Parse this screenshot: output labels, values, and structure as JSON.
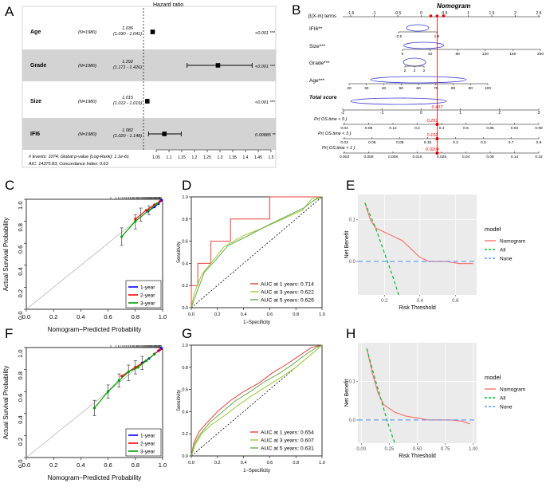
{
  "panel_letters": [
    "A",
    "B",
    "C",
    "D",
    "E",
    "F",
    "G",
    "H"
  ],
  "chart_data": [
    {
      "panel": "A",
      "type": "forest",
      "axis_label": "Hazard ratio",
      "ticks": [
        "1.05",
        "1.1",
        "1.15",
        "1.2",
        "1.25",
        "1.3",
        "1.35",
        "1.4",
        "1.45",
        "1.5"
      ],
      "rows": [
        {
          "name": "Age",
          "n": "(N=1980)",
          "hr": "1.036",
          "ci": "(1.030 - 1.041)",
          "p": "<0.001 ***",
          "hr_val": 1.036,
          "lo": 1.03,
          "hi": 1.041,
          "shaded": false
        },
        {
          "name": "Grade",
          "n": "(N=1980)",
          "hr": "1.292",
          "ci": "(1.171 - 1.426)",
          "p": "<0.001 ***",
          "hr_val": 1.292,
          "lo": 1.171,
          "hi": 1.426,
          "shaded": true
        },
        {
          "name": "Size",
          "n": "(N=1980)",
          "hr": "1.015",
          "ci": "(1.012 - 1.019)",
          "p": "<0.001 ***",
          "hr_val": 1.015,
          "lo": 1.012,
          "hi": 1.019,
          "shaded": false
        },
        {
          "name": "IFI6",
          "n": "(N=1980)",
          "hr": "1.082",
          "ci": "(1.020 - 1.148)",
          "p": "0.00885 **",
          "hr_val": 1.082,
          "lo": 1.02,
          "hi": 1.148,
          "shaded": true
        }
      ],
      "footer_1": "# Events: 1074; Global p-value (Log-Rank): 1.1e-61",
      "footer_2": "AIC: 14375.83; Concordance Index: 0.63"
    },
    {
      "panel": "B",
      "type": "nomogram",
      "title": "Nomogram",
      "header_label": "β(X-m) terms",
      "header_ticks": [
        "-1.5",
        "-1",
        "-0.5",
        "0",
        "0.5",
        "1",
        "1.5",
        "2",
        "2.5"
      ],
      "rows": [
        {
          "label": "IFI6**",
          "ticks": [
            "-2.5",
            "1.5"
          ]
        },
        {
          "label": "Size***",
          "ticks": [
            "0",
            "40",
            "80",
            "120",
            "160",
            "200"
          ]
        },
        {
          "label": "Grade***",
          "ticks": [
            "2",
            "2",
            "2"
          ]
        },
        {
          "label": "Age***",
          "ticks": [
            "20",
            "30",
            "40",
            "50",
            "60",
            "70",
            "80",
            "90",
            "100"
          ]
        }
      ],
      "total_label": "Total score",
      "total_ticks": [
        "-2",
        "-1",
        "0",
        "1",
        "2",
        "3"
      ],
      "total_marker": "0.407",
      "prob_rows": [
        {
          "label": "Pr( OS.time < 5 )",
          "ticks": [
            "0.04",
            "0.08",
            "0.12",
            "0.2",
            "0.4",
            "0.6",
            "0.85",
            "0.94",
            "0.99"
          ],
          "marker": "0.291"
        },
        {
          "label": "Pr( OS.time < 3 )",
          "ticks": [
            "0.03",
            "0.05",
            "0.08",
            "0.15",
            "0.3",
            "0.5",
            "0.7",
            "0.9"
          ],
          "marker": "0.152"
        },
        {
          "label": "Pr( OS.time < 1 )",
          "ticks": [
            "0.003",
            "0.005",
            "0.008",
            "0.015",
            "0.025",
            "0.04",
            "0.08",
            "0.14",
            "0.22"
          ],
          "marker": "0.0204"
        }
      ]
    },
    {
      "panel": "C",
      "type": "calibration",
      "xlabel": "Nomogram−Predicted Probability",
      "ylabel": "Actual Survival Probability",
      "xticks": [
        "0.0",
        "0.2",
        "0.4",
        "0.6",
        "0.8",
        "1.0"
      ],
      "yticks": [
        "0.0",
        "0.2",
        "0.4",
        "0.6",
        "0.8",
        "1.0"
      ],
      "legend": [
        "1-year",
        "2-year",
        "3-year"
      ],
      "series": [
        {
          "name": "1-year",
          "color": "#0000ff",
          "points": [
            [
              0.89,
              0.89
            ],
            [
              0.94,
              0.93
            ],
            [
              0.97,
              0.96
            ],
            [
              0.99,
              0.99
            ]
          ]
        },
        {
          "name": "2-year",
          "color": "#ff0000",
          "points": [
            [
              0.8,
              0.82
            ],
            [
              0.88,
              0.9
            ],
            [
              0.94,
              0.95
            ],
            [
              0.98,
              0.98
            ]
          ]
        },
        {
          "name": "3-year",
          "color": "#00a000",
          "points": [
            [
              0.7,
              0.66
            ],
            [
              0.8,
              0.8
            ],
            [
              0.9,
              0.9
            ],
            [
              0.96,
              0.96
            ]
          ]
        }
      ],
      "errbars": [
        [
          0.7,
          0.66,
          0.58,
          0.74
        ],
        [
          0.8,
          0.8,
          0.73,
          0.86
        ],
        [
          0.84,
          0.86,
          0.8,
          0.92
        ],
        [
          0.9,
          0.9,
          0.86,
          0.94
        ]
      ]
    },
    {
      "panel": "D",
      "type": "roc",
      "xlabel": "1−Specificity",
      "ylabel": "Sensitivity",
      "ticks": [
        "0.0",
        "0.2",
        "0.4",
        "0.6",
        "0.8",
        "1.0"
      ],
      "legend": [
        {
          "label": "AUC at 1 years: 0.714",
          "color": "#e8413c"
        },
        {
          "label": "AUC at 3 years: 0.622",
          "color": "#9acd32"
        },
        {
          "label": "AUC at 5 years: 0.626",
          "color": "#6aa84f"
        }
      ],
      "series": [
        {
          "color": "#e8413c",
          "points": [
            [
              0,
              0
            ],
            [
              0,
              0.2
            ],
            [
              0.05,
              0.2
            ],
            [
              0.05,
              0.4
            ],
            [
              0.15,
              0.4
            ],
            [
              0.15,
              0.6
            ],
            [
              0.3,
              0.6
            ],
            [
              0.3,
              0.8
            ],
            [
              0.6,
              0.8
            ],
            [
              0.6,
              1.0
            ],
            [
              1,
              1
            ]
          ]
        },
        {
          "color": "#9acd32",
          "points": [
            [
              0,
              0
            ],
            [
              0.02,
              0.12
            ],
            [
              0.08,
              0.3
            ],
            [
              0.15,
              0.4
            ],
            [
              0.25,
              0.55
            ],
            [
              0.4,
              0.65
            ],
            [
              0.55,
              0.72
            ],
            [
              0.7,
              0.8
            ],
            [
              0.85,
              0.88
            ],
            [
              0.92,
              0.98
            ],
            [
              1,
              1
            ]
          ]
        },
        {
          "color": "#6aa84f",
          "points": [
            [
              0,
              0
            ],
            [
              0.03,
              0.1
            ],
            [
              0.1,
              0.32
            ],
            [
              0.18,
              0.42
            ],
            [
              0.28,
              0.56
            ],
            [
              0.42,
              0.64
            ],
            [
              0.58,
              0.74
            ],
            [
              0.72,
              0.82
            ],
            [
              0.86,
              0.9
            ],
            [
              0.94,
              0.97
            ],
            [
              1,
              1
            ]
          ]
        }
      ]
    },
    {
      "panel": "E",
      "type": "dca",
      "xlabel": "Risk Threshold",
      "ylabel": "Net Benefit",
      "xticks": [
        "0.2",
        "0.4",
        "0.6"
      ],
      "yticks": [
        "0.0",
        "0.1"
      ],
      "xlim": [
        0.05,
        0.72
      ],
      "ylim": [
        -0.08,
        0.16
      ],
      "legend_title": "model",
      "legend": [
        {
          "label": "Nomogram",
          "color": "#f8766d",
          "style": "solid"
        },
        {
          "label": "All",
          "color": "#00ba38",
          "style": "dashed"
        },
        {
          "label": "None",
          "color": "#619cff",
          "style": "dashed"
        }
      ],
      "series": [
        {
          "color": "#f8766d",
          "dash": "",
          "points": [
            [
              0.09,
              0.14
            ],
            [
              0.12,
              0.1
            ],
            [
              0.15,
              0.08
            ],
            [
              0.2,
              0.07
            ],
            [
              0.25,
              0.06
            ],
            [
              0.3,
              0.05
            ],
            [
              0.35,
              0.03
            ],
            [
              0.4,
              0.01
            ],
            [
              0.45,
              0.0
            ],
            [
              0.55,
              0.0
            ],
            [
              0.62,
              -0.005
            ],
            [
              0.7,
              -0.005
            ]
          ]
        },
        {
          "color": "#00ba38",
          "dash": "4,3",
          "points": [
            [
              0.09,
              0.14
            ],
            [
              0.15,
              0.08
            ],
            [
              0.2,
              0.02
            ],
            [
              0.25,
              -0.04
            ],
            [
              0.28,
              -0.08
            ]
          ]
        },
        {
          "color": "#619cff",
          "dash": "6,4",
          "points": [
            [
              0.05,
              0
            ],
            [
              0.72,
              0
            ]
          ]
        }
      ]
    },
    {
      "panel": "F",
      "type": "calibration",
      "xlabel": "Nomogram−Predicted Probability",
      "ylabel": "Actual Survival Probability",
      "xticks": [
        "0.0",
        "0.2",
        "0.4",
        "0.6",
        "0.8",
        "1.0"
      ],
      "yticks": [
        "0.0",
        "0.2",
        "0.4",
        "0.6",
        "0.8",
        "1.0"
      ],
      "legend": [
        "1-year",
        "2-year",
        "3-year"
      ],
      "series": [
        {
          "name": "1-year",
          "color": "#0000ff",
          "points": [
            [
              0.85,
              0.86
            ],
            [
              0.9,
              0.9
            ],
            [
              0.94,
              0.94
            ],
            [
              0.97,
              0.97
            ],
            [
              0.99,
              0.99
            ]
          ]
        },
        {
          "name": "2-year",
          "color": "#ff0000",
          "points": [
            [
              0.7,
              0.74
            ],
            [
              0.8,
              0.82
            ],
            [
              0.88,
              0.88
            ],
            [
              0.94,
              0.94
            ],
            [
              0.98,
              0.98
            ]
          ]
        },
        {
          "name": "3-year",
          "color": "#00a000",
          "points": [
            [
              0.5,
              0.45
            ],
            [
              0.6,
              0.6
            ],
            [
              0.68,
              0.7
            ],
            [
              0.75,
              0.78
            ],
            [
              0.82,
              0.82
            ],
            [
              0.88,
              0.88
            ],
            [
              0.94,
              0.94
            ]
          ]
        }
      ],
      "errbars": [
        [
          0.5,
          0.45,
          0.38,
          0.52
        ],
        [
          0.6,
          0.6,
          0.54,
          0.66
        ],
        [
          0.68,
          0.7,
          0.64,
          0.76
        ],
        [
          0.75,
          0.78,
          0.7,
          0.84
        ],
        [
          0.8,
          0.82,
          0.76,
          0.88
        ],
        [
          0.85,
          0.86,
          0.8,
          0.92
        ]
      ]
    },
    {
      "panel": "G",
      "type": "roc",
      "xlabel": "1−Specificity",
      "ylabel": "Sensitivity",
      "ticks": [
        "0.0",
        "0.2",
        "0.4",
        "0.6",
        "0.8",
        "1.0"
      ],
      "legend": [
        {
          "label": "AUC at 1 years: 0.654",
          "color": "#e8413c"
        },
        {
          "label": "AUC at 3 years: 0.607",
          "color": "#9acd32"
        },
        {
          "label": "AUC at 5 years: 0.631",
          "color": "#6aa84f"
        }
      ],
      "series": [
        {
          "color": "#e8413c",
          "points": [
            [
              0,
              0
            ],
            [
              0.02,
              0.12
            ],
            [
              0.06,
              0.22
            ],
            [
              0.12,
              0.3
            ],
            [
              0.2,
              0.4
            ],
            [
              0.3,
              0.5
            ],
            [
              0.4,
              0.58
            ],
            [
              0.52,
              0.66
            ],
            [
              0.62,
              0.75
            ],
            [
              0.72,
              0.82
            ],
            [
              0.82,
              0.9
            ],
            [
              0.92,
              0.98
            ],
            [
              1,
              1
            ]
          ]
        },
        {
          "color": "#9acd32",
          "points": [
            [
              0,
              0
            ],
            [
              0.03,
              0.1
            ],
            [
              0.08,
              0.2
            ],
            [
              0.15,
              0.28
            ],
            [
              0.25,
              0.36
            ],
            [
              0.35,
              0.45
            ],
            [
              0.47,
              0.55
            ],
            [
              0.58,
              0.63
            ],
            [
              0.7,
              0.72
            ],
            [
              0.8,
              0.8
            ],
            [
              0.9,
              0.9
            ],
            [
              0.97,
              0.97
            ],
            [
              1,
              1
            ]
          ]
        },
        {
          "color": "#6aa84f",
          "points": [
            [
              0,
              0
            ],
            [
              0.02,
              0.1
            ],
            [
              0.07,
              0.2
            ],
            [
              0.14,
              0.3
            ],
            [
              0.24,
              0.4
            ],
            [
              0.34,
              0.5
            ],
            [
              0.45,
              0.58
            ],
            [
              0.56,
              0.67
            ],
            [
              0.68,
              0.75
            ],
            [
              0.78,
              0.83
            ],
            [
              0.88,
              0.92
            ],
            [
              0.96,
              0.98
            ],
            [
              1,
              1
            ]
          ]
        }
      ]
    },
    {
      "panel": "H",
      "type": "dca",
      "xlabel": "Risk Threshold",
      "ylabel": "Net Benefit",
      "xticks": [
        "0.00",
        "0.25",
        "0.50",
        "0.75",
        "1.00"
      ],
      "yticks": [
        "0.0",
        "0.1"
      ],
      "xlim": [
        -0.03,
        1.03
      ],
      "ylim": [
        -0.06,
        0.2
      ],
      "legend_title": "model",
      "legend": [
        {
          "label": "Nomogram",
          "color": "#f8766d",
          "style": "solid"
        },
        {
          "label": "All",
          "color": "#00ba38",
          "style": "dashed"
        },
        {
          "label": "None",
          "color": "#619cff",
          "style": "dashed"
        }
      ],
      "series": [
        {
          "color": "#f8766d",
          "dash": "",
          "points": [
            [
              0.05,
              0.185
            ],
            [
              0.1,
              0.12
            ],
            [
              0.15,
              0.07
            ],
            [
              0.2,
              0.04
            ],
            [
              0.3,
              0.02
            ],
            [
              0.4,
              0.01
            ],
            [
              0.5,
              0.005
            ],
            [
              0.6,
              0.0
            ],
            [
              0.7,
              0.0
            ],
            [
              0.8,
              0.0
            ],
            [
              0.9,
              -0.003
            ],
            [
              0.97,
              -0.01
            ]
          ]
        },
        {
          "color": "#00ba38",
          "dash": "4,3",
          "points": [
            [
              0.05,
              0.185
            ],
            [
              0.1,
              0.13
            ],
            [
              0.15,
              0.08
            ],
            [
              0.2,
              0.03
            ],
            [
              0.25,
              -0.02
            ],
            [
              0.3,
              -0.06
            ]
          ]
        },
        {
          "color": "#619cff",
          "dash": "6,4",
          "points": [
            [
              -0.03,
              0
            ],
            [
              1.03,
              0
            ]
          ]
        }
      ]
    }
  ]
}
